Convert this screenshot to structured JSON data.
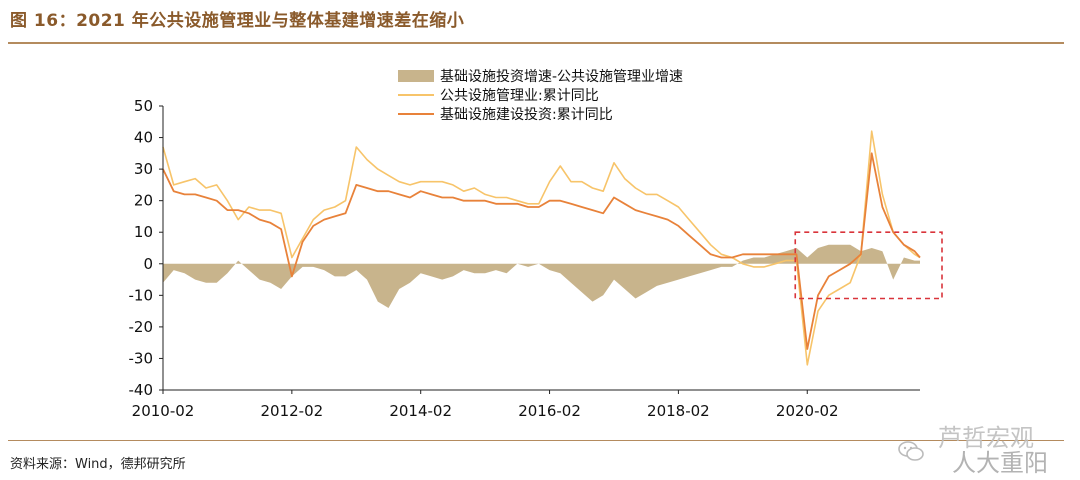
{
  "header": {
    "title": "图 16：2021 年公共设施管理业与整体基建增速差在缩小"
  },
  "footer": {
    "source": "资料来源：Wind，德邦研究所"
  },
  "watermark": {
    "line1": "芦哲宏观",
    "line2": "人大重阳"
  },
  "colors": {
    "accent": "#8a5a2b",
    "rule": "#b48b5e",
    "area": "#c8b48c",
    "public_line": "#f7c46a",
    "infra_line": "#e8823a",
    "highlight_box": "#d9343b"
  },
  "chart_data": {
    "type": "line",
    "title": "",
    "xlabel": "",
    "ylabel": "",
    "ylim": [
      -40,
      50
    ],
    "yticks": [
      50,
      40,
      30,
      20,
      10,
      0,
      -10,
      -20,
      -30,
      -40
    ],
    "xticks": [
      "2010-02",
      "2012-02",
      "2014-02",
      "2016-02",
      "2018-02",
      "2020-02"
    ],
    "x_range": [
      "2010-02",
      "2021-11"
    ],
    "grid": false,
    "legend_position": "top-center",
    "x": [
      "2010-02",
      "2010-04",
      "2010-06",
      "2010-08",
      "2010-10",
      "2010-12",
      "2011-02",
      "2011-04",
      "2011-06",
      "2011-08",
      "2011-10",
      "2011-12",
      "2012-02",
      "2012-04",
      "2012-06",
      "2012-08",
      "2012-10",
      "2012-12",
      "2013-02",
      "2013-04",
      "2013-06",
      "2013-08",
      "2013-10",
      "2013-12",
      "2014-02",
      "2014-04",
      "2014-06",
      "2014-08",
      "2014-10",
      "2014-12",
      "2015-02",
      "2015-04",
      "2015-06",
      "2015-08",
      "2015-10",
      "2015-12",
      "2016-02",
      "2016-04",
      "2016-06",
      "2016-08",
      "2016-10",
      "2016-12",
      "2017-02",
      "2017-04",
      "2017-06",
      "2017-08",
      "2017-10",
      "2017-12",
      "2018-02",
      "2018-04",
      "2018-06",
      "2018-08",
      "2018-10",
      "2018-12",
      "2019-02",
      "2019-04",
      "2019-06",
      "2019-08",
      "2019-10",
      "2019-12",
      "2020-02",
      "2020-04",
      "2020-06",
      "2020-08",
      "2020-10",
      "2020-12",
      "2021-02",
      "2021-04",
      "2021-06",
      "2021-08",
      "2021-10",
      "2021-11"
    ],
    "series": [
      {
        "name": "基础设施投资增速-公共设施管理业增速",
        "kind": "area",
        "color": "#c8b48c",
        "values": [
          -6,
          -2,
          -3,
          -5,
          -6,
          -6,
          -3,
          1,
          -2,
          -5,
          -6,
          -8,
          -4,
          -1,
          -1,
          -2,
          -4,
          -4,
          -2,
          -5,
          -12,
          -14,
          -8,
          -6,
          -3,
          -4,
          -5,
          -4,
          -2,
          -3,
          -3,
          -2,
          -3,
          0,
          -1,
          0,
          -2,
          -3,
          -6,
          -9,
          -12,
          -10,
          -5,
          -8,
          -11,
          -9,
          -7,
          -6,
          -5,
          -4,
          -3,
          -2,
          -1,
          -1,
          1,
          2,
          2,
          3,
          4,
          5,
          2,
          5,
          6,
          6,
          6,
          4,
          5,
          4,
          -5,
          2,
          1,
          1
        ]
      },
      {
        "name": "公共设施管理业:累计同比",
        "kind": "line",
        "color": "#f7c46a",
        "values": [
          37,
          25,
          26,
          27,
          24,
          25,
          20,
          14,
          18,
          17,
          17,
          16,
          2,
          8,
          14,
          17,
          18,
          20,
          37,
          33,
          30,
          28,
          26,
          25,
          26,
          26,
          26,
          25,
          23,
          24,
          22,
          21,
          21,
          20,
          19,
          19,
          26,
          31,
          26,
          26,
          24,
          23,
          32,
          27,
          24,
          22,
          22,
          20,
          18,
          14,
          10,
          6,
          3,
          2,
          0,
          -1,
          -1,
          0,
          1,
          1,
          -32,
          -15,
          -10,
          -8,
          -6,
          3,
          42,
          22,
          10,
          6,
          3,
          2
        ]
      },
      {
        "name": "基础设施建设投资:累计同比",
        "kind": "line",
        "color": "#e8823a",
        "values": [
          30,
          23,
          22,
          22,
          21,
          20,
          17,
          17,
          16,
          14,
          13,
          11,
          -4,
          7,
          12,
          14,
          15,
          16,
          25,
          24,
          23,
          23,
          22,
          21,
          23,
          22,
          21,
          21,
          20,
          20,
          20,
          19,
          19,
          19,
          18,
          18,
          20,
          20,
          19,
          18,
          17,
          16,
          21,
          19,
          17,
          16,
          15,
          14,
          12,
          9,
          6,
          3,
          2,
          2,
          3,
          3,
          3,
          3,
          3,
          3,
          -27,
          -10,
          -4,
          -2,
          0,
          3,
          35,
          18,
          10,
          6,
          4,
          2
        ]
      }
    ],
    "highlight_box": {
      "from": "2020-02",
      "to": "2021-11",
      "y_top": 10,
      "y_bottom": -11
    }
  }
}
